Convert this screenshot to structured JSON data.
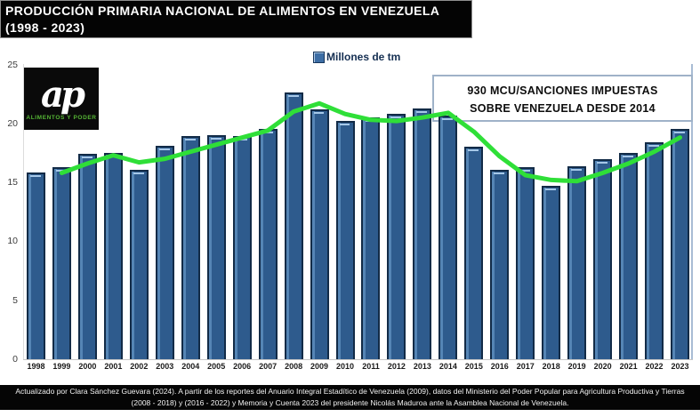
{
  "title": {
    "line1": "PRODUCCIÓN PRIMARIA NACIONAL DE ALIMENTOS EN VENEZUELA",
    "line2": "(1998 - 2023)"
  },
  "logo": {
    "monogram": "ap",
    "caption": "ALIMENTOS Y PODER"
  },
  "annotation": {
    "line1": "930 MCU/SANCIONES IMPUESTAS",
    "line2": "SOBRE VENEZUELA DESDE 2014"
  },
  "footer": {
    "text": "Actualizado por Clara Sánchez Guevara (2024). A partir de los reportes del Anuario Integral Estadítico de Venezuela (2009), datos del Ministerio del Poder Popular para Agricultura Productiva y Tierras (2008 - 2018) y (2016 - 2022) y Memoria y Cuenta 2023 del presidente Nicolás Maduroa ante la Asamblea Nacional de Venezuela."
  },
  "colors": {
    "bar_fill": "#2e5b8d",
    "bar_border": "#122b47",
    "bar_highlight": "#a6c8e8",
    "trend_line": "#2fdf38",
    "legend_swatch": "#3d6ea5",
    "annotation_border": "#9fb2c8",
    "title_bg": "#000000",
    "title_fg": "#ffffff",
    "logo_green": "#55b535"
  },
  "chart_data": {
    "type": "bar",
    "title": "PRODUCCIÓN PRIMARIA NACIONAL DE ALIMENTOS EN VENEZUELA (1998 - 2023)",
    "xlabel": "",
    "ylabel": "Millones de tm",
    "ylim": [
      0,
      25
    ],
    "yticks": [
      0,
      5,
      10,
      15,
      20,
      25
    ],
    "grid": false,
    "legend_position": "top",
    "categories": [
      "1998",
      "1999",
      "2000",
      "2001",
      "2002",
      "2003",
      "2004",
      "2005",
      "2006",
      "2007",
      "2008",
      "2009",
      "2010",
      "2011",
      "2012",
      "2013",
      "2014",
      "2015",
      "2016",
      "2017",
      "2018",
      "2019",
      "2020",
      "2021",
      "2022",
      "2023"
    ],
    "series": [
      {
        "name": "Millones de tm",
        "type": "bar",
        "values": [
          15.8,
          16.3,
          17.4,
          17.5,
          16.1,
          18.1,
          18.9,
          19.0,
          18.9,
          19.5,
          22.6,
          21.2,
          20.2,
          20.5,
          20.8,
          21.3,
          20.7,
          18.0,
          16.1,
          16.3,
          14.7,
          16.4,
          17.0,
          17.5,
          18.4,
          19.5
        ]
      },
      {
        "name": "trend_line",
        "type": "line",
        "x": [
          "1999",
          "2000",
          "2001",
          "2002",
          "2003",
          "2004",
          "2005",
          "2006",
          "2007",
          "2008",
          "2009",
          "2010",
          "2011",
          "2012",
          "2013",
          "2014",
          "2015",
          "2016",
          "2017",
          "2018",
          "2019",
          "2020",
          "2021",
          "2022",
          "2023"
        ],
        "values": [
          15.8,
          16.6,
          17.3,
          16.7,
          17.0,
          17.6,
          18.2,
          18.8,
          19.4,
          21.0,
          21.7,
          20.8,
          20.3,
          20.2,
          20.5,
          20.9,
          19.3,
          17.2,
          15.6,
          15.2,
          15.1,
          15.8,
          16.6,
          17.6,
          18.8
        ]
      }
    ],
    "annotations": [
      "930 MCU/SANCIONES IMPUESTAS SOBRE VENEZUELA DESDE 2014"
    ]
  }
}
